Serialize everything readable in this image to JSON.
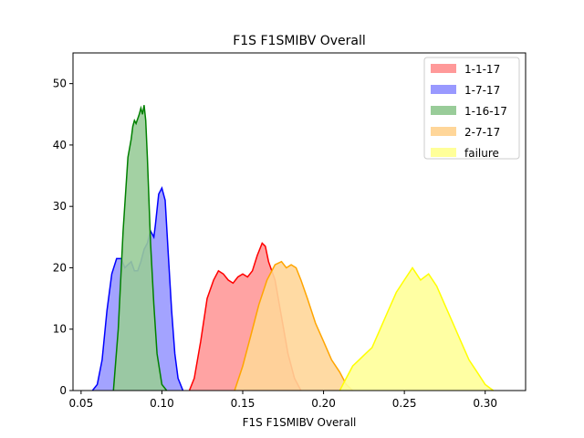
{
  "chart_data": {
    "type": "area",
    "title": "F1S F1SMIBV Overall",
    "xlabel": "F1S F1SMIBV Overall",
    "ylabel": "",
    "xlim": [
      0.045,
      0.325
    ],
    "ylim": [
      0,
      55
    ],
    "xticks": [
      0.05,
      0.1,
      0.15,
      0.2,
      0.25,
      0.3
    ],
    "xtick_labels": [
      "0.05",
      "0.10",
      "0.15",
      "0.20",
      "0.25",
      "0.30"
    ],
    "yticks": [
      0,
      10,
      20,
      30,
      40,
      50
    ],
    "ytick_labels": [
      "0",
      "10",
      "20",
      "30",
      "40",
      "50"
    ],
    "grid": false,
    "legend_position": "top-right",
    "series": [
      {
        "name": "1-1-17",
        "fill_color": "#ff9999",
        "line_color": "#ff0000",
        "points": [
          [
            0.117,
            0
          ],
          [
            0.12,
            2
          ],
          [
            0.124,
            8
          ],
          [
            0.128,
            15
          ],
          [
            0.132,
            18
          ],
          [
            0.135,
            19.5
          ],
          [
            0.138,
            19
          ],
          [
            0.141,
            18
          ],
          [
            0.144,
            17.5
          ],
          [
            0.147,
            18.5
          ],
          [
            0.15,
            19
          ],
          [
            0.153,
            18.5
          ],
          [
            0.156,
            19.5
          ],
          [
            0.159,
            22
          ],
          [
            0.162,
            24
          ],
          [
            0.164,
            23.5
          ],
          [
            0.166,
            21
          ],
          [
            0.17,
            18
          ],
          [
            0.174,
            12
          ],
          [
            0.178,
            6
          ],
          [
            0.182,
            2
          ],
          [
            0.186,
            0
          ]
        ]
      },
      {
        "name": "1-7-17",
        "fill_color": "#9999ff",
        "line_color": "#0000ff",
        "points": [
          [
            0.057,
            0
          ],
          [
            0.06,
            1
          ],
          [
            0.063,
            5
          ],
          [
            0.066,
            13
          ],
          [
            0.069,
            19
          ],
          [
            0.072,
            21.5
          ],
          [
            0.075,
            21.5
          ],
          [
            0.077,
            20
          ],
          [
            0.079,
            20.5
          ],
          [
            0.081,
            21
          ],
          [
            0.083,
            19.5
          ],
          [
            0.085,
            19.5
          ],
          [
            0.087,
            21
          ],
          [
            0.089,
            23
          ],
          [
            0.091,
            24
          ],
          [
            0.093,
            26
          ],
          [
            0.095,
            25
          ],
          [
            0.096,
            27
          ],
          [
            0.098,
            32
          ],
          [
            0.1,
            33
          ],
          [
            0.102,
            31
          ],
          [
            0.104,
            22
          ],
          [
            0.106,
            13
          ],
          [
            0.108,
            6
          ],
          [
            0.11,
            2
          ],
          [
            0.113,
            0
          ]
        ]
      },
      {
        "name": "1-16-17",
        "fill_color": "#99cc99",
        "line_color": "#008000",
        "points": [
          [
            0.07,
            0
          ],
          [
            0.073,
            10
          ],
          [
            0.076,
            26
          ],
          [
            0.079,
            38
          ],
          [
            0.081,
            41
          ],
          [
            0.082,
            43
          ],
          [
            0.083,
            44
          ],
          [
            0.084,
            43.5
          ],
          [
            0.086,
            45
          ],
          [
            0.087,
            46
          ],
          [
            0.088,
            45
          ],
          [
            0.089,
            46.5
          ],
          [
            0.09,
            44
          ],
          [
            0.091,
            38
          ],
          [
            0.093,
            24
          ],
          [
            0.095,
            14
          ],
          [
            0.097,
            6
          ],
          [
            0.1,
            1
          ],
          [
            0.103,
            0
          ]
        ]
      },
      {
        "name": "2-7-17",
        "fill_color": "#ffd699",
        "line_color": "#ffa500",
        "points": [
          [
            0.145,
            0
          ],
          [
            0.15,
            4
          ],
          [
            0.155,
            9
          ],
          [
            0.16,
            14
          ],
          [
            0.165,
            18
          ],
          [
            0.17,
            20.5
          ],
          [
            0.174,
            21
          ],
          [
            0.177,
            20
          ],
          [
            0.18,
            20.5
          ],
          [
            0.183,
            20
          ],
          [
            0.186,
            18
          ],
          [
            0.19,
            15
          ],
          [
            0.195,
            11
          ],
          [
            0.2,
            8
          ],
          [
            0.205,
            5
          ],
          [
            0.21,
            3
          ],
          [
            0.214,
            1
          ],
          [
            0.218,
            0
          ]
        ]
      },
      {
        "name": "failure",
        "fill_color": "#ffff99",
        "line_color": "#ffff00",
        "points": [
          [
            0.21,
            0
          ],
          [
            0.214,
            2
          ],
          [
            0.218,
            4
          ],
          [
            0.222,
            5
          ],
          [
            0.226,
            6
          ],
          [
            0.23,
            7
          ],
          [
            0.235,
            10
          ],
          [
            0.24,
            13
          ],
          [
            0.245,
            16
          ],
          [
            0.25,
            18
          ],
          [
            0.255,
            20
          ],
          [
            0.26,
            18
          ],
          [
            0.265,
            19
          ],
          [
            0.27,
            17
          ],
          [
            0.275,
            14
          ],
          [
            0.28,
            11
          ],
          [
            0.285,
            8
          ],
          [
            0.29,
            5
          ],
          [
            0.295,
            3
          ],
          [
            0.3,
            1
          ],
          [
            0.305,
            0
          ]
        ]
      }
    ]
  }
}
